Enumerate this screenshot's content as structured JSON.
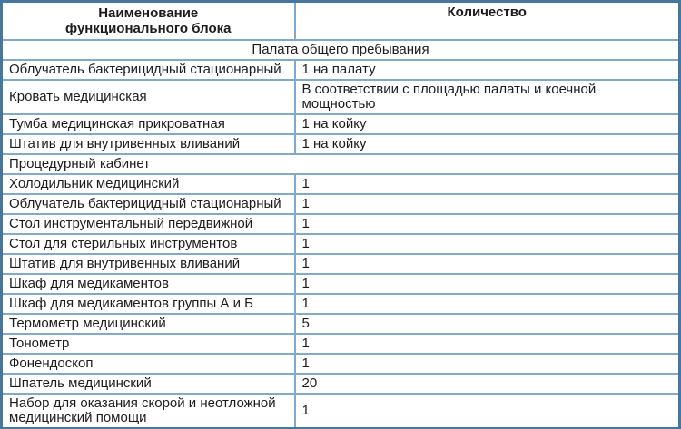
{
  "colors": {
    "outer_border": "#44779E",
    "inner_border": "#7FA9CD",
    "text": "#1C1C1C",
    "background": "#FFFFFF"
  },
  "table": {
    "header": {
      "name_line1": "Наименование",
      "name_line2": "функционального блока",
      "qty": "Количество"
    },
    "rows": [
      {
        "type": "section",
        "align": "center",
        "label": "Палата общего пребывания"
      },
      {
        "type": "item",
        "name": "Облучатель бактерицидный стационарный",
        "qty": "1 на палату"
      },
      {
        "type": "item",
        "name": "Кровать медицинская",
        "qty": "В соответствии с площадью палаты и коечной мощностью"
      },
      {
        "type": "item",
        "name": "Тумба медицинская прикроватная",
        "qty": "1 на койку"
      },
      {
        "type": "item",
        "name": "Штатив для внутривенных вливаний",
        "qty": "1 на койку"
      },
      {
        "type": "section",
        "align": "left",
        "label": "Процедурный кабинет"
      },
      {
        "type": "item",
        "name": "Холодильник медицинский",
        "qty": "1"
      },
      {
        "type": "item",
        "name": "Облучатель бактерицидный стационарный",
        "qty": "1"
      },
      {
        "type": "item",
        "name": "Стол инструментальный передвижной",
        "qty": "1"
      },
      {
        "type": "item",
        "name": "Стол для стерильных инструментов",
        "qty": "1"
      },
      {
        "type": "item",
        "name": "Штатив для внутривенных вливаний",
        "qty": "1"
      },
      {
        "type": "item",
        "name": "Шкаф для медикаментов",
        "qty": "1"
      },
      {
        "type": "item",
        "name": "Шкаф для медикаментов группы А и Б",
        "qty": "1"
      },
      {
        "type": "item",
        "name": "Термометр медицинский",
        "qty": "5"
      },
      {
        "type": "item",
        "name": "Тонометр",
        "qty": "1"
      },
      {
        "type": "item",
        "name": "Фонендоскоп",
        "qty": "1"
      },
      {
        "type": "item",
        "name": "Шпатель медицинский",
        "qty": "20"
      },
      {
        "type": "item",
        "name": "Набор для оказания скорой и неотложной медицинский помощи",
        "qty": "1"
      }
    ]
  }
}
